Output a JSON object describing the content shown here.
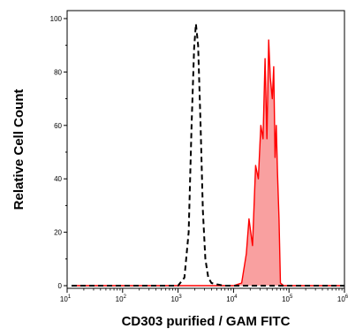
{
  "chart_data": {
    "type": "area",
    "title": "",
    "xlabel": "CD303 purified / GAM FITC",
    "ylabel": "Relative Cell Count",
    "xscale": "log",
    "xlim": [
      10,
      1000000
    ],
    "ylim": [
      0,
      100
    ],
    "x_ticks": [
      {
        "value": 10,
        "base": "10",
        "exp": "1"
      },
      {
        "value": 100,
        "base": "10",
        "exp": "2"
      },
      {
        "value": 1000,
        "base": "10",
        "exp": "3"
      },
      {
        "value": 10000,
        "base": "10",
        "exp": "4"
      },
      {
        "value": 100000,
        "base": "10",
        "exp": "5"
      },
      {
        "value": 1000000,
        "base": "10",
        "exp": "6"
      }
    ],
    "y_ticks": [
      {
        "value": 0,
        "label": "0"
      },
      {
        "value": 20,
        "label": "20"
      },
      {
        "value": 40,
        "label": "40"
      },
      {
        "value": 60,
        "label": "60"
      },
      {
        "value": 80,
        "label": "80"
      },
      {
        "value": 100,
        "label": "100"
      }
    ],
    "grid": false,
    "legend": "none",
    "series": [
      {
        "style": "dashed",
        "color": "#000000",
        "fill": "none",
        "x": [
          12,
          1000,
          1300,
          1550,
          1750,
          1950,
          2100,
          2300,
          2550,
          2800,
          3100,
          3500,
          4000,
          5000,
          6500,
          1000000
        ],
        "y": [
          0,
          0,
          3,
          20,
          60,
          89,
          98,
          90,
          60,
          28,
          10,
          3,
          1,
          0.5,
          0,
          0
        ]
      },
      {
        "style": "solid",
        "color": "#ff0000",
        "fill": "#f9a0a0",
        "x": [
          12,
          10000,
          14000,
          17000,
          19000,
          22000,
          25000,
          28000,
          31000,
          34000,
          37000,
          40000,
          43000,
          46000,
          50000,
          53000,
          56000,
          59000,
          62000,
          66000,
          70000,
          80000,
          1000000
        ],
        "y": [
          0,
          0,
          1,
          12,
          25,
          15,
          45,
          40,
          60,
          55,
          85,
          55,
          92,
          78,
          70,
          82,
          48,
          60,
          42,
          25,
          1,
          0,
          0
        ]
      }
    ]
  }
}
